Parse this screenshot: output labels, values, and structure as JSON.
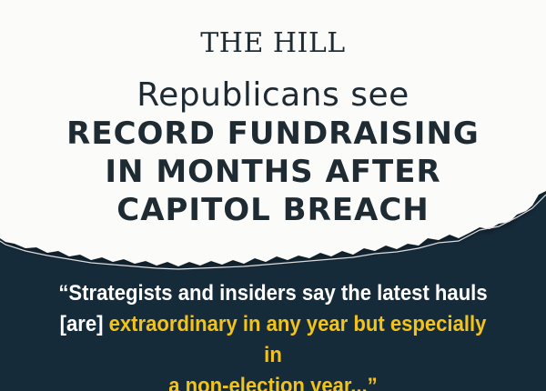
{
  "masthead": "THE HILL",
  "intro": "Republicans see",
  "headline_lines": [
    "RECORD FUNDRAISING",
    "IN MONTHS AFTER",
    "CAPITOL BREACH"
  ],
  "quote": {
    "open": "“Strategists and insiders say the latest hauls",
    "lead": "[are] ",
    "highlight_1": "extraordinary in any year but especially in",
    "highlight_2": "a non-election year...”"
  },
  "colors": {
    "paper": "#fbfbfa",
    "panel": "#162b3a",
    "ink": "#1f2b33",
    "highlight": "#f3c31a",
    "quote_text": "#ffffff"
  }
}
